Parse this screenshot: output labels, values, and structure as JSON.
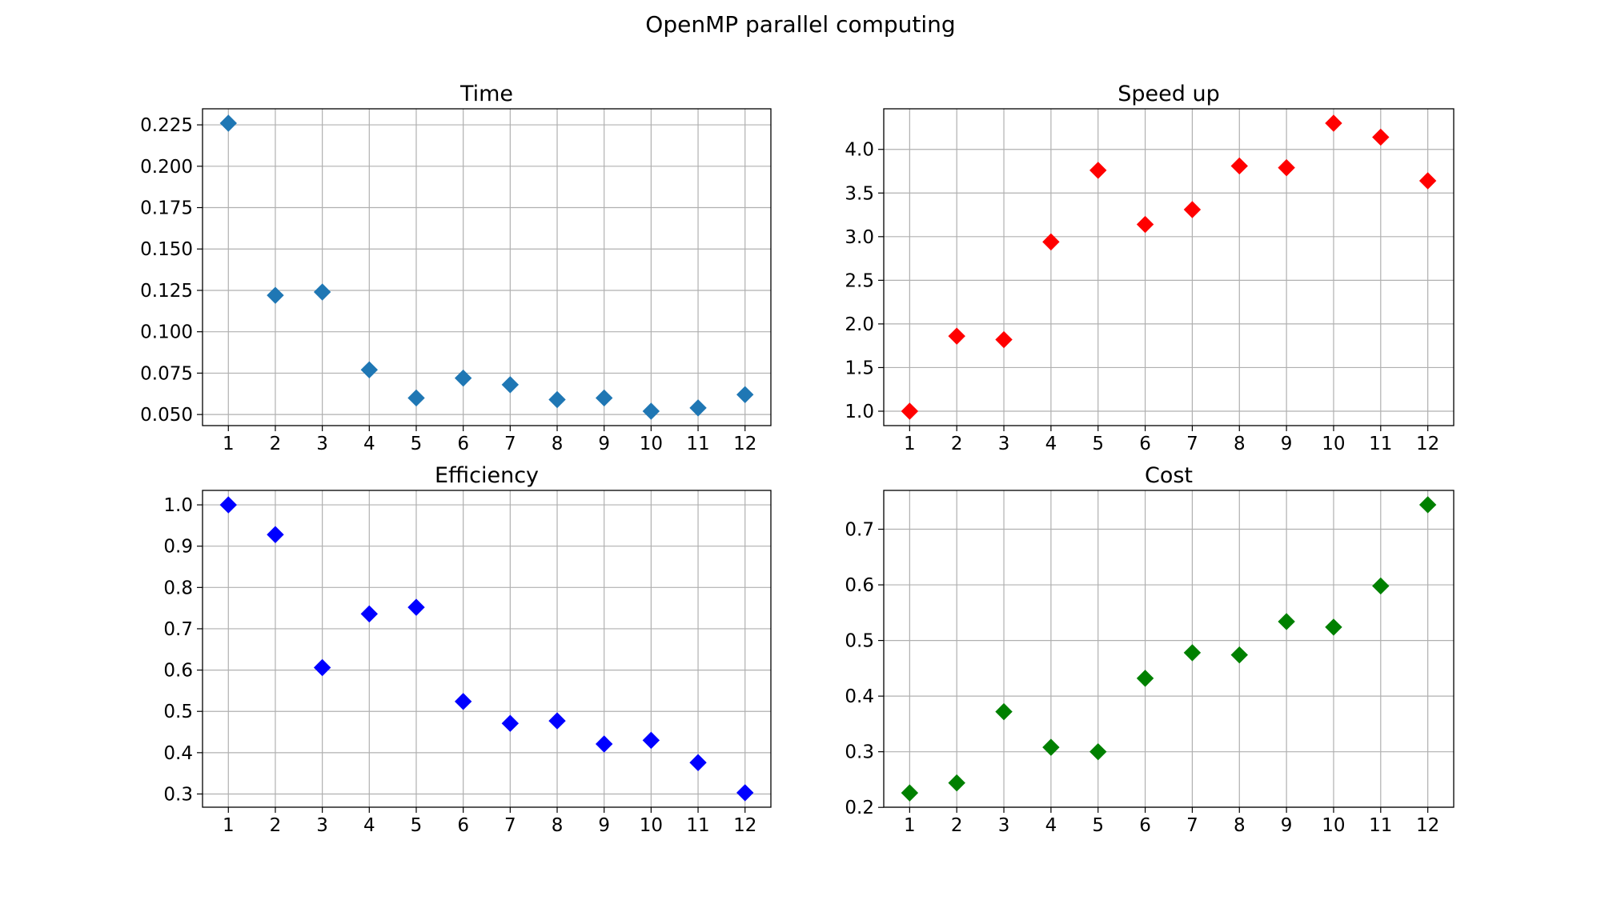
{
  "figure": {
    "title": "OpenMP parallel computing"
  },
  "chart_data": [
    {
      "type": "scatter",
      "title": "Time",
      "marker": "diamond",
      "color": "#1f77b4",
      "grid": true,
      "x": [
        1,
        2,
        3,
        4,
        5,
        6,
        7,
        8,
        9,
        10,
        11,
        12
      ],
      "y": [
        0.226,
        0.122,
        0.124,
        0.077,
        0.06,
        0.072,
        0.068,
        0.059,
        0.06,
        0.052,
        0.054,
        0.062
      ],
      "xlim": [
        0.45,
        12.55
      ],
      "ylim": [
        0.0433,
        0.2347
      ],
      "xticks": [
        1,
        2,
        3,
        4,
        5,
        6,
        7,
        8,
        9,
        10,
        11,
        12
      ],
      "xtick_labels": [
        "1",
        "2",
        "3",
        "4",
        "5",
        "6",
        "7",
        "8",
        "9",
        "10",
        "11",
        "12"
      ],
      "yticks": [
        0.05,
        0.075,
        0.1,
        0.125,
        0.15,
        0.175,
        0.2,
        0.225
      ],
      "ytick_labels": [
        "0.050",
        "0.075",
        "0.100",
        "0.125",
        "0.150",
        "0.175",
        "0.200",
        "0.225"
      ]
    },
    {
      "type": "scatter",
      "title": "Speed up",
      "marker": "diamond",
      "color": "#ff0000",
      "grid": true,
      "x": [
        1,
        2,
        3,
        4,
        5,
        6,
        7,
        8,
        9,
        10,
        11,
        12
      ],
      "y": [
        1.0,
        1.86,
        1.82,
        2.94,
        3.76,
        3.14,
        3.31,
        3.81,
        3.79,
        4.3,
        4.14,
        3.64
      ],
      "xlim": [
        0.45,
        12.55
      ],
      "ylim": [
        0.835,
        4.465
      ],
      "xticks": [
        1,
        2,
        3,
        4,
        5,
        6,
        7,
        8,
        9,
        10,
        11,
        12
      ],
      "xtick_labels": [
        "1",
        "2",
        "3",
        "4",
        "5",
        "6",
        "7",
        "8",
        "9",
        "10",
        "11",
        "12"
      ],
      "yticks": [
        1.0,
        1.5,
        2.0,
        2.5,
        3.0,
        3.5,
        4.0
      ],
      "ytick_labels": [
        "1.0",
        "1.5",
        "2.0",
        "2.5",
        "3.0",
        "3.5",
        "4.0"
      ]
    },
    {
      "type": "scatter",
      "title": "Efficiency",
      "marker": "diamond",
      "color": "#0000ff",
      "grid": true,
      "x": [
        1,
        2,
        3,
        4,
        5,
        6,
        7,
        8,
        9,
        10,
        11,
        12
      ],
      "y": [
        1.0,
        0.928,
        0.606,
        0.736,
        0.752,
        0.524,
        0.471,
        0.477,
        0.421,
        0.43,
        0.376,
        0.303
      ],
      "xlim": [
        0.45,
        12.55
      ],
      "ylim": [
        0.268,
        1.035
      ],
      "xticks": [
        1,
        2,
        3,
        4,
        5,
        6,
        7,
        8,
        9,
        10,
        11,
        12
      ],
      "xtick_labels": [
        "1",
        "2",
        "3",
        "4",
        "5",
        "6",
        "7",
        "8",
        "9",
        "10",
        "11",
        "12"
      ],
      "yticks": [
        0.3,
        0.4,
        0.5,
        0.6,
        0.7,
        0.8,
        0.9,
        1.0
      ],
      "ytick_labels": [
        "0.3",
        "0.4",
        "0.5",
        "0.6",
        "0.7",
        "0.8",
        "0.9",
        "1.0"
      ]
    },
    {
      "type": "scatter",
      "title": "Cost",
      "marker": "diamond",
      "color": "#008000",
      "grid": true,
      "x": [
        1,
        2,
        3,
        4,
        5,
        6,
        7,
        8,
        9,
        10,
        11,
        12
      ],
      "y": [
        0.226,
        0.244,
        0.372,
        0.308,
        0.3,
        0.432,
        0.478,
        0.474,
        0.534,
        0.524,
        0.598,
        0.744
      ],
      "xlim": [
        0.45,
        12.55
      ],
      "ylim": [
        0.2003,
        0.7698
      ],
      "xticks": [
        1,
        2,
        3,
        4,
        5,
        6,
        7,
        8,
        9,
        10,
        11,
        12
      ],
      "xtick_labels": [
        "1",
        "2",
        "3",
        "4",
        "5",
        "6",
        "7",
        "8",
        "9",
        "10",
        "11",
        "12"
      ],
      "yticks": [
        0.2,
        0.3,
        0.4,
        0.5,
        0.6,
        0.7
      ],
      "ytick_labels": [
        "0.2",
        "0.3",
        "0.4",
        "0.5",
        "0.6",
        "0.7"
      ]
    }
  ]
}
